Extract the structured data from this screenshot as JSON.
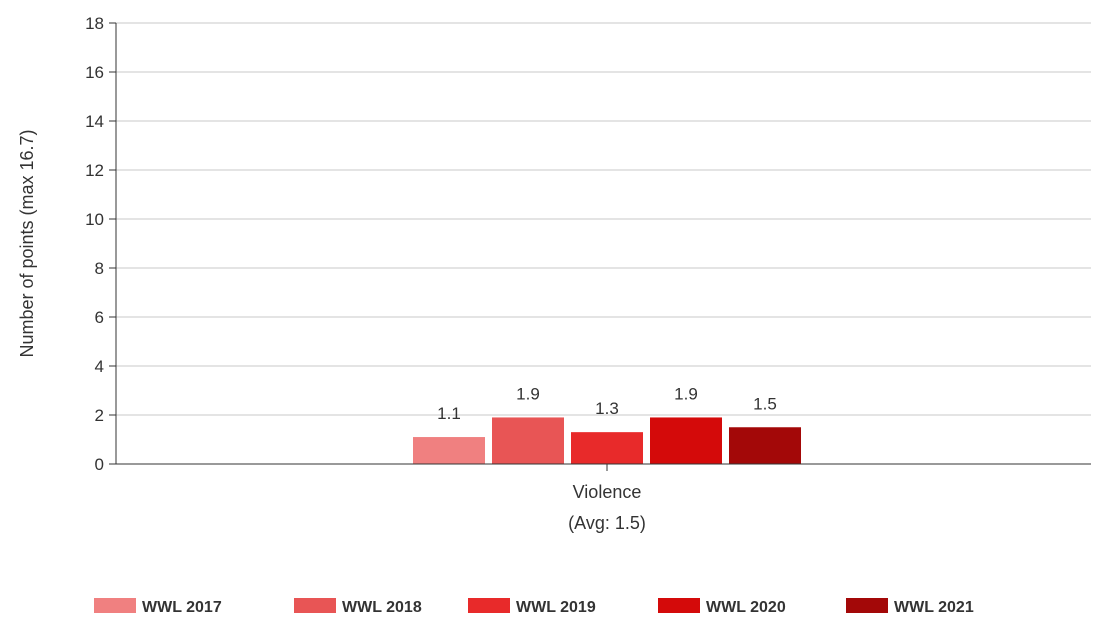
{
  "chart_data": {
    "type": "bar",
    "categories": [
      "Violence"
    ],
    "category_sublabels": [
      "(Avg: 1.5)"
    ],
    "series": [
      {
        "name": "WWL 2017",
        "color": "#f08080",
        "values": [
          1.1
        ]
      },
      {
        "name": "WWL 2018",
        "color": "#e85555",
        "values": [
          1.9
        ]
      },
      {
        "name": "WWL 2019",
        "color": "#e82a2a",
        "values": [
          1.3
        ]
      },
      {
        "name": "WWL 2020",
        "color": "#d40a0a",
        "values": [
          1.9
        ]
      },
      {
        "name": "WWL 2021",
        "color": "#a30808",
        "values": [
          1.5
        ]
      }
    ],
    "data_labels": [
      "1.1",
      "1.9",
      "1.3",
      "1.9",
      "1.5"
    ],
    "ylabel": "Number of points (max 16.7)",
    "xlabel": "",
    "ylim": [
      0,
      18
    ],
    "yticks": [
      0,
      2,
      4,
      6,
      8,
      10,
      12,
      14,
      16,
      18
    ],
    "grid": true,
    "legend": "bottom"
  }
}
